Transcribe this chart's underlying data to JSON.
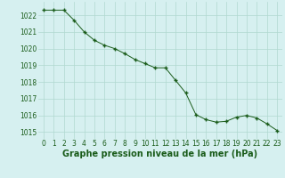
{
  "x": [
    0,
    1,
    2,
    3,
    4,
    5,
    6,
    7,
    8,
    9,
    10,
    11,
    12,
    13,
    14,
    15,
    16,
    17,
    18,
    19,
    20,
    21,
    22,
    23
  ],
  "y": [
    1022.3,
    1022.3,
    1022.3,
    1021.7,
    1021.0,
    1020.5,
    1020.2,
    1020.0,
    1019.7,
    1019.35,
    1019.1,
    1018.85,
    1018.85,
    1018.1,
    1017.35,
    1016.05,
    1015.75,
    1015.6,
    1015.65,
    1015.9,
    1016.0,
    1015.85,
    1015.5,
    1015.1
  ],
  "line_color": "#1a5c1a",
  "marker_color": "#1a5c1a",
  "bg_color": "#d6f0f0",
  "grid_color": "#b0d8d0",
  "xlabel": "Graphe pression niveau de la mer (hPa)",
  "xlabel_color": "#1a5c1a",
  "tick_color": "#1a5c1a",
  "ylim": [
    1014.6,
    1022.8
  ],
  "yticks": [
    1015,
    1016,
    1017,
    1018,
    1019,
    1020,
    1021,
    1022
  ],
  "xticks": [
    0,
    1,
    2,
    3,
    4,
    5,
    6,
    7,
    8,
    9,
    10,
    11,
    12,
    13,
    14,
    15,
    16,
    17,
    18,
    19,
    20,
    21,
    22,
    23
  ],
  "xtick_labels": [
    "0",
    "1",
    "2",
    "3",
    "4",
    "5",
    "6",
    "7",
    "8",
    "9",
    "10",
    "11",
    "12",
    "13",
    "14",
    "15",
    "16",
    "17",
    "18",
    "19",
    "20",
    "21",
    "22",
    "23"
  ],
  "title_fontsize": 7,
  "tick_fontsize": 5.5
}
